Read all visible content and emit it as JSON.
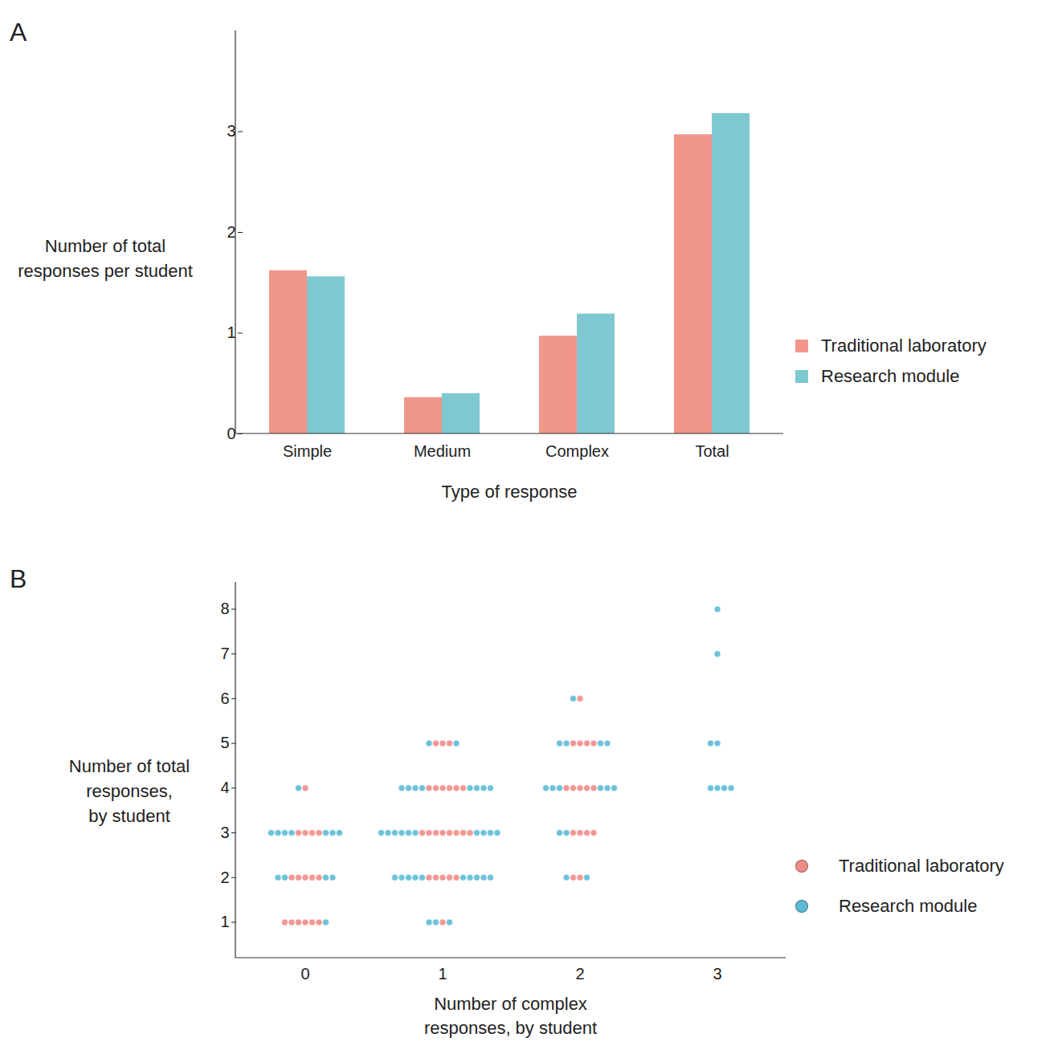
{
  "chart_data": [
    {
      "panel": "A",
      "type": "bar",
      "categories": [
        "Simple",
        "Medium",
        "Complex",
        "Total"
      ],
      "xlabel": "Type of response",
      "ylabel": "Number of total\nresponses per student",
      "ylim": [
        0,
        4
      ],
      "yticks": [
        0,
        1,
        2,
        3
      ],
      "legend": "right",
      "series": [
        {
          "name": "Traditional laboratory",
          "color": "#f0968a",
          "values": [
            1.62,
            0.36,
            0.97,
            2.97
          ]
        },
        {
          "name": "Research module",
          "color": "#7fc8d2",
          "values": [
            1.56,
            0.4,
            1.19,
            3.18
          ]
        }
      ]
    },
    {
      "panel": "B",
      "type": "scatter",
      "categories": [
        0,
        1,
        2,
        3
      ],
      "xlabel": "Number of complex\nresponses, by student",
      "ylabel": "Number of total\nresponses,\nby student",
      "ylim": [
        0.2,
        8.6
      ],
      "yticks": [
        1,
        2,
        3,
        4,
        5,
        6,
        7,
        8
      ],
      "legend": "right",
      "series": [
        {
          "name": "Traditional laboratory",
          "color": "#f08c87",
          "marker": "circle",
          "x": [
            0,
            0,
            0,
            0,
            0,
            0,
            0,
            0,
            0,
            0,
            0,
            0,
            0,
            0,
            0,
            0,
            1,
            1,
            1,
            1,
            1,
            1,
            1,
            1,
            1,
            1,
            1,
            1,
            1,
            1,
            1,
            1,
            1,
            1,
            1,
            1,
            1,
            1,
            1,
            2,
            2,
            2,
            2,
            2,
            2,
            2,
            2,
            2,
            2,
            2,
            2,
            2,
            2,
            2,
            2
          ],
          "values": [
            4,
            3,
            3,
            3,
            3,
            2,
            2,
            2,
            2,
            2,
            1,
            1,
            1,
            1,
            1,
            1,
            5,
            5,
            5,
            4,
            4,
            4,
            4,
            4,
            4,
            3,
            3,
            3,
            3,
            3,
            3,
            3,
            3,
            2,
            2,
            2,
            2,
            2,
            1,
            6,
            5,
            5,
            5,
            5,
            4,
            4,
            4,
            4,
            4,
            3,
            3,
            3,
            3,
            2,
            2
          ]
        },
        {
          "name": "Research module",
          "color": "#5dbbd6",
          "marker": "circle",
          "x": [
            0,
            0,
            0,
            0,
            0,
            0,
            0,
            0,
            0,
            0,
            0,
            0,
            0,
            1,
            1,
            1,
            1,
            1,
            1,
            1,
            1,
            1,
            1,
            1,
            1,
            1,
            1,
            1,
            1,
            1,
            1,
            1,
            1,
            1,
            1,
            1,
            1,
            1,
            1,
            1,
            1,
            1,
            1,
            1,
            1,
            1,
            2,
            2,
            2,
            2,
            2,
            2,
            2,
            2,
            2,
            2,
            2,
            2,
            2,
            2,
            2,
            3,
            3,
            3,
            3,
            3,
            3,
            3,
            3
          ],
          "values": [
            4,
            3,
            3,
            3,
            3,
            3,
            3,
            3,
            2,
            2,
            2,
            2,
            1,
            5,
            5,
            4,
            4,
            4,
            4,
            4,
            4,
            4,
            4,
            3,
            3,
            3,
            3,
            3,
            3,
            3,
            3,
            3,
            3,
            2,
            2,
            2,
            2,
            2,
            2,
            2,
            2,
            2,
            2,
            1,
            1,
            1,
            6,
            5,
            5,
            5,
            5,
            4,
            4,
            4,
            4,
            4,
            4,
            3,
            3,
            2,
            2,
            8,
            7,
            5,
            5,
            4,
            4,
            4,
            4
          ]
        }
      ]
    }
  ]
}
